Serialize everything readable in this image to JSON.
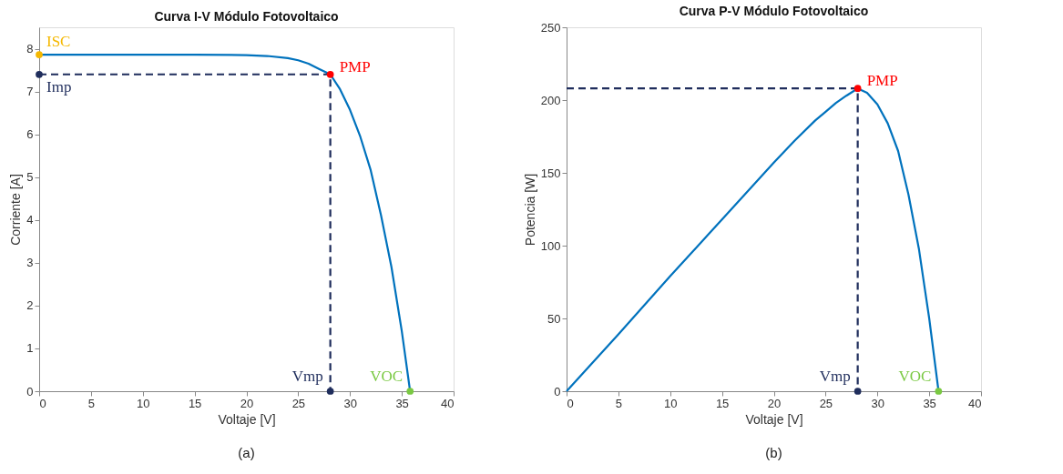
{
  "chart_data": [
    {
      "type": "line",
      "title": "Curva I-V Módulo Fotovoltaico",
      "xlabel": "Voltaje [V]",
      "ylabel": "Corriente [A]",
      "xlim": [
        0,
        40
      ],
      "ylim": [
        0,
        8.5
      ],
      "xticks": [
        0,
        5,
        10,
        15,
        20,
        25,
        30,
        35,
        40
      ],
      "yticks": [
        0,
        1,
        2,
        3,
        4,
        5,
        6,
        7,
        8
      ],
      "series": [
        {
          "color": "#0072bd",
          "x": [
            0,
            5,
            10,
            15,
            20,
            22,
            24,
            25,
            26,
            27,
            28.1,
            29,
            30,
            31,
            32,
            33,
            34,
            35,
            35.8
          ],
          "values": [
            7.86,
            7.86,
            7.86,
            7.86,
            7.85,
            7.83,
            7.78,
            7.73,
            7.65,
            7.53,
            7.4,
            7.07,
            6.57,
            5.94,
            5.16,
            4.1,
            2.9,
            1.4,
            0
          ]
        },
        {
          "color": "#1f2d5c",
          "line_style": "dashed",
          "x": [
            0,
            28.1,
            28.1
          ],
          "values": [
            7.4,
            7.4,
            0
          ]
        },
        {
          "type": "scatter",
          "color": "#f5b800",
          "x": [
            0
          ],
          "values": [
            7.86
          ]
        },
        {
          "type": "scatter",
          "color": "#1f2d5c",
          "x": [
            0,
            28.1
          ],
          "values": [
            7.4,
            0
          ]
        },
        {
          "type": "scatter",
          "color": "#ff0000",
          "x": [
            28.1
          ],
          "values": [
            7.4
          ]
        },
        {
          "type": "scatter",
          "color": "#7ac943",
          "x": [
            35.8
          ],
          "values": [
            0
          ]
        }
      ],
      "annotations": [
        {
          "text": "ISC",
          "x": 0,
          "y": 7.86
        },
        {
          "text": "Imp",
          "x": 0,
          "y": 7.4
        },
        {
          "text": "PMP",
          "x": 28.1,
          "y": 7.4
        },
        {
          "text": "Vmp",
          "x": 28.1,
          "y": 0
        },
        {
          "text": "VOC",
          "x": 35.8,
          "y": 0
        },
        "(a)"
      ]
    },
    {
      "type": "line",
      "title": "Curva P-V Módulo Fotovoltaico",
      "xlabel": "Voltaje [V]",
      "ylabel": "Potencia [W]",
      "xlim": [
        0,
        40
      ],
      "ylim": [
        0,
        250
      ],
      "xticks": [
        0,
        5,
        10,
        15,
        20,
        25,
        30,
        35,
        40
      ],
      "yticks": [
        0,
        50,
        100,
        150,
        200,
        250
      ],
      "series": [
        {
          "color": "#0072bd",
          "x": [
            0,
            5,
            10,
            15,
            20,
            22,
            24,
            25,
            26,
            27,
            28.1,
            29,
            30,
            31,
            32,
            33,
            34,
            35,
            35.9
          ],
          "values": [
            0,
            39,
            79,
            118,
            157,
            172,
            186,
            192,
            198,
            203,
            208,
            205,
            197,
            184,
            165,
            135,
            98,
            50,
            0
          ]
        },
        {
          "color": "#1f2d5c",
          "line_style": "dashed",
          "x": [
            0,
            28.1,
            28.1
          ],
          "values": [
            208,
            208,
            0
          ]
        },
        {
          "type": "scatter",
          "color": "#1f2d5c",
          "x": [
            28.1
          ],
          "values": [
            0
          ]
        },
        {
          "type": "scatter",
          "color": "#ff0000",
          "x": [
            28.1
          ],
          "values": [
            208
          ]
        },
        {
          "type": "scatter",
          "color": "#7ac943",
          "x": [
            35.9
          ],
          "values": [
            0
          ]
        }
      ],
      "annotations": [
        {
          "text": "PMP",
          "x": 28.1,
          "y": 208
        },
        {
          "text": "Vmp",
          "x": 28.1,
          "y": 0
        },
        {
          "text": "VOC",
          "x": 35.9,
          "y": 0
        },
        "(b)"
      ]
    }
  ]
}
